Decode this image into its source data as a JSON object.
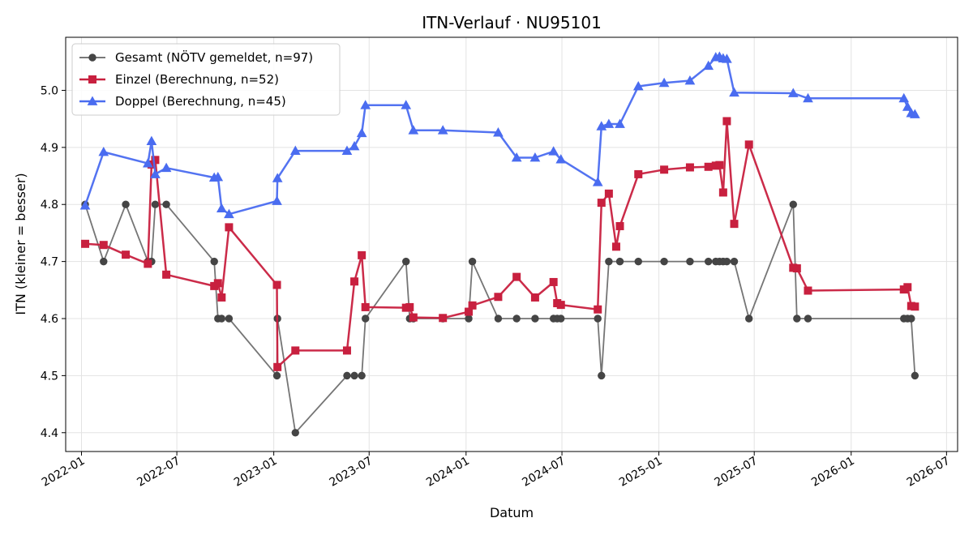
{
  "chart_data": {
    "type": "line",
    "title": "ITN-Verlauf · NU95101",
    "xlabel": "Datum",
    "ylabel": "ITN  (kleiner = besser)",
    "xlim": [
      "2021-12-02",
      "2026-07-22"
    ],
    "ylim": [
      4.367,
      5.093
    ],
    "x_ticks": [
      "2022-01",
      "2022-07",
      "2023-01",
      "2023-07",
      "2024-01",
      "2024-07",
      "2025-01",
      "2025-07",
      "2026-01",
      "2026-07"
    ],
    "y_ticks": [
      4.4,
      4.5,
      4.6,
      4.7,
      4.8,
      4.9,
      5.0
    ],
    "grid": true,
    "legend_position": "top-left",
    "series": [
      {
        "name": "Gesamt (NÖTV gemeldet, n=97)",
        "color": "#666666",
        "marker": "circle",
        "points": [
          [
            "2022-01-08",
            4.8
          ],
          [
            "2022-02-12",
            4.7
          ],
          [
            "2022-03-26",
            4.8
          ],
          [
            "2022-05-07",
            4.7
          ],
          [
            "2022-05-14",
            4.7
          ],
          [
            "2022-05-21",
            4.8
          ],
          [
            "2022-06-11",
            4.8
          ],
          [
            "2022-09-10",
            4.7
          ],
          [
            "2022-09-17",
            4.6
          ],
          [
            "2022-09-24",
            4.6
          ],
          [
            "2022-10-08",
            4.6
          ],
          [
            "2023-01-07",
            4.5
          ],
          [
            "2023-01-08",
            4.6
          ],
          [
            "2023-02-11",
            4.4
          ],
          [
            "2023-05-20",
            4.5
          ],
          [
            "2023-06-03",
            4.5
          ],
          [
            "2023-06-17",
            4.5
          ],
          [
            "2023-06-24",
            4.6
          ],
          [
            "2023-09-09",
            4.7
          ],
          [
            "2023-09-16",
            4.6
          ],
          [
            "2023-09-23",
            4.6
          ],
          [
            "2023-11-18",
            4.6
          ],
          [
            "2024-01-06",
            4.6
          ],
          [
            "2024-01-13",
            4.7
          ],
          [
            "2024-03-02",
            4.6
          ],
          [
            "2024-04-06",
            4.6
          ],
          [
            "2024-05-11",
            4.6
          ],
          [
            "2024-06-15",
            4.6
          ],
          [
            "2024-06-22",
            4.6
          ],
          [
            "2024-06-29",
            4.6
          ],
          [
            "2024-09-07",
            4.6
          ],
          [
            "2024-09-14",
            4.5
          ],
          [
            "2024-09-28",
            4.7
          ],
          [
            "2024-10-19",
            4.7
          ],
          [
            "2024-11-23",
            4.7
          ],
          [
            "2025-01-11",
            4.7
          ],
          [
            "2025-03-01",
            4.7
          ],
          [
            "2025-04-05",
            4.7
          ],
          [
            "2025-04-19",
            4.7
          ],
          [
            "2025-04-26",
            4.7
          ],
          [
            "2025-05-03",
            4.7
          ],
          [
            "2025-05-10",
            4.7
          ],
          [
            "2025-05-24",
            4.7
          ],
          [
            "2025-06-21",
            4.6
          ],
          [
            "2025-09-13",
            4.8
          ],
          [
            "2025-09-20",
            4.6
          ],
          [
            "2025-10-11",
            4.6
          ],
          [
            "2026-04-11",
            4.6
          ],
          [
            "2026-04-18",
            4.6
          ],
          [
            "2026-04-25",
            4.6
          ],
          [
            "2026-05-02",
            4.5
          ]
        ]
      },
      {
        "name": "Einzel (Berechnung, n=52)",
        "color": "#C8203F",
        "marker": "square",
        "points": [
          [
            "2022-01-08",
            4.731
          ],
          [
            "2022-02-12",
            4.729
          ],
          [
            "2022-03-26",
            4.712
          ],
          [
            "2022-05-07",
            4.696
          ],
          [
            "2022-05-14",
            4.87
          ],
          [
            "2022-05-21",
            4.878
          ],
          [
            "2022-06-11",
            4.677
          ],
          [
            "2022-09-10",
            4.657
          ],
          [
            "2022-09-17",
            4.662
          ],
          [
            "2022-09-24",
            4.637
          ],
          [
            "2022-10-08",
            4.76
          ],
          [
            "2023-01-07",
            4.659
          ],
          [
            "2023-01-08",
            4.515
          ],
          [
            "2023-02-11",
            4.544
          ],
          [
            "2023-05-20",
            4.544
          ],
          [
            "2023-06-03",
            4.665
          ],
          [
            "2023-06-17",
            4.711
          ],
          [
            "2023-06-24",
            4.62
          ],
          [
            "2023-09-09",
            4.619
          ],
          [
            "2023-09-16",
            4.62
          ],
          [
            "2023-09-23",
            4.602
          ],
          [
            "2023-11-18",
            4.601
          ],
          [
            "2024-01-06",
            4.612
          ],
          [
            "2024-01-13",
            4.623
          ],
          [
            "2024-03-02",
            4.638
          ],
          [
            "2024-04-06",
            4.673
          ],
          [
            "2024-05-11",
            4.637
          ],
          [
            "2024-06-15",
            4.664
          ],
          [
            "2024-06-22",
            4.627
          ],
          [
            "2024-06-29",
            4.624
          ],
          [
            "2024-09-07",
            4.616
          ],
          [
            "2024-09-14",
            4.803
          ],
          [
            "2024-09-28",
            4.819
          ],
          [
            "2024-10-12",
            4.726
          ],
          [
            "2024-10-19",
            4.762
          ],
          [
            "2024-11-23",
            4.853
          ],
          [
            "2025-01-11",
            4.861
          ],
          [
            "2025-03-01",
            4.865
          ],
          [
            "2025-04-05",
            4.866
          ],
          [
            "2025-04-19",
            4.868
          ],
          [
            "2025-04-26",
            4.869
          ],
          [
            "2025-05-03",
            4.821
          ],
          [
            "2025-05-10",
            4.946
          ],
          [
            "2025-05-24",
            4.766
          ],
          [
            "2025-06-21",
            4.905
          ],
          [
            "2025-09-13",
            4.689
          ],
          [
            "2025-09-20",
            4.688
          ],
          [
            "2025-10-11",
            4.649
          ],
          [
            "2026-04-11",
            4.651
          ],
          [
            "2026-04-18",
            4.655
          ],
          [
            "2026-04-25",
            4.622
          ],
          [
            "2026-05-02",
            4.621
          ]
        ]
      },
      {
        "name": "Doppel (Berechnung, n=45)",
        "color": "#4A6CF0",
        "marker": "triangle",
        "points": [
          [
            "2022-01-08",
            4.798
          ],
          [
            "2022-02-12",
            4.892
          ],
          [
            "2022-05-07",
            4.872
          ],
          [
            "2022-05-14",
            4.911
          ],
          [
            "2022-05-21",
            4.853
          ],
          [
            "2022-06-11",
            4.864
          ],
          [
            "2022-09-10",
            4.847
          ],
          [
            "2022-09-17",
            4.848
          ],
          [
            "2022-09-24",
            4.793
          ],
          [
            "2022-10-08",
            4.783
          ],
          [
            "2023-01-07",
            4.806
          ],
          [
            "2023-01-08",
            4.846
          ],
          [
            "2023-02-11",
            4.894
          ],
          [
            "2023-05-20",
            4.894
          ],
          [
            "2023-06-03",
            4.902
          ],
          [
            "2023-06-17",
            4.925
          ],
          [
            "2023-06-24",
            4.974
          ],
          [
            "2023-09-09",
            4.974
          ],
          [
            "2023-09-23",
            4.93
          ],
          [
            "2023-11-18",
            4.93
          ],
          [
            "2024-03-02",
            4.926
          ],
          [
            "2024-04-06",
            4.882
          ],
          [
            "2024-05-11",
            4.882
          ],
          [
            "2024-06-15",
            4.893
          ],
          [
            "2024-06-29",
            4.879
          ],
          [
            "2024-09-07",
            4.839
          ],
          [
            "2024-09-14",
            4.937
          ],
          [
            "2024-09-28",
            4.941
          ],
          [
            "2024-10-19",
            4.941
          ],
          [
            "2024-11-23",
            5.007
          ],
          [
            "2025-01-11",
            5.013
          ],
          [
            "2025-03-01",
            5.017
          ],
          [
            "2025-04-05",
            5.043
          ],
          [
            "2025-04-19",
            5.058
          ],
          [
            "2025-04-26",
            5.059
          ],
          [
            "2025-05-03",
            5.056
          ],
          [
            "2025-05-10",
            5.055
          ],
          [
            "2025-05-24",
            4.996
          ],
          [
            "2025-09-13",
            4.995
          ],
          [
            "2025-10-11",
            4.986
          ],
          [
            "2026-04-11",
            4.986
          ],
          [
            "2026-04-18",
            4.971
          ],
          [
            "2026-04-25",
            4.96
          ],
          [
            "2026-05-02",
            4.958
          ]
        ]
      }
    ]
  }
}
